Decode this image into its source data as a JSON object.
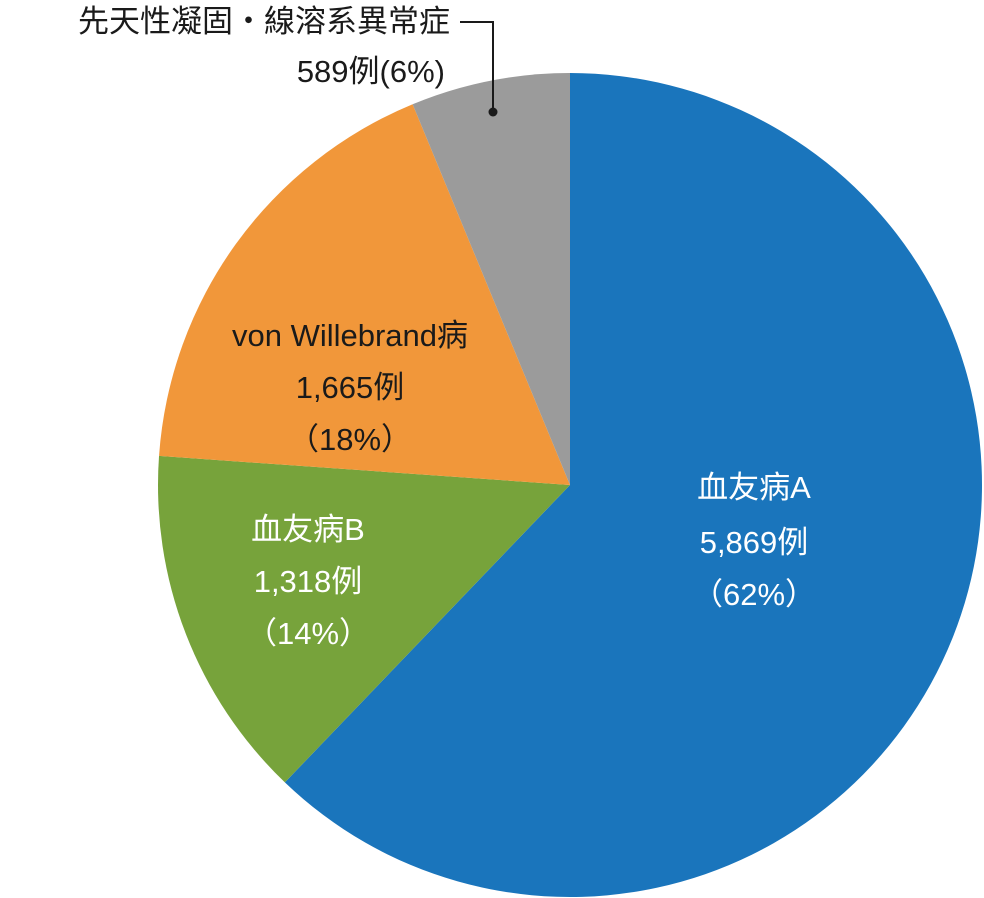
{
  "chart_data": {
    "type": "pie",
    "categories": [
      "血友病A",
      "血友病B",
      "von Willebrand病",
      "先天性凝固・線溶系異常症"
    ],
    "values": [
      5869,
      1318,
      1665,
      589
    ],
    "value_labels": [
      "5,869例",
      "1,318例",
      "1,665例",
      "589例"
    ],
    "percents": [
      62,
      14,
      18,
      6
    ],
    "percent_labels": [
      "（62%）",
      "（14%）",
      "（18%）",
      "(6%)"
    ],
    "colors": [
      "#1a75bc",
      "#77a33b",
      "#f1973a",
      "#9b9b9b"
    ],
    "label_colors": [
      "#ffffff",
      "#ffffff",
      "#1a1a1a",
      "#1a1a1a"
    ]
  }
}
